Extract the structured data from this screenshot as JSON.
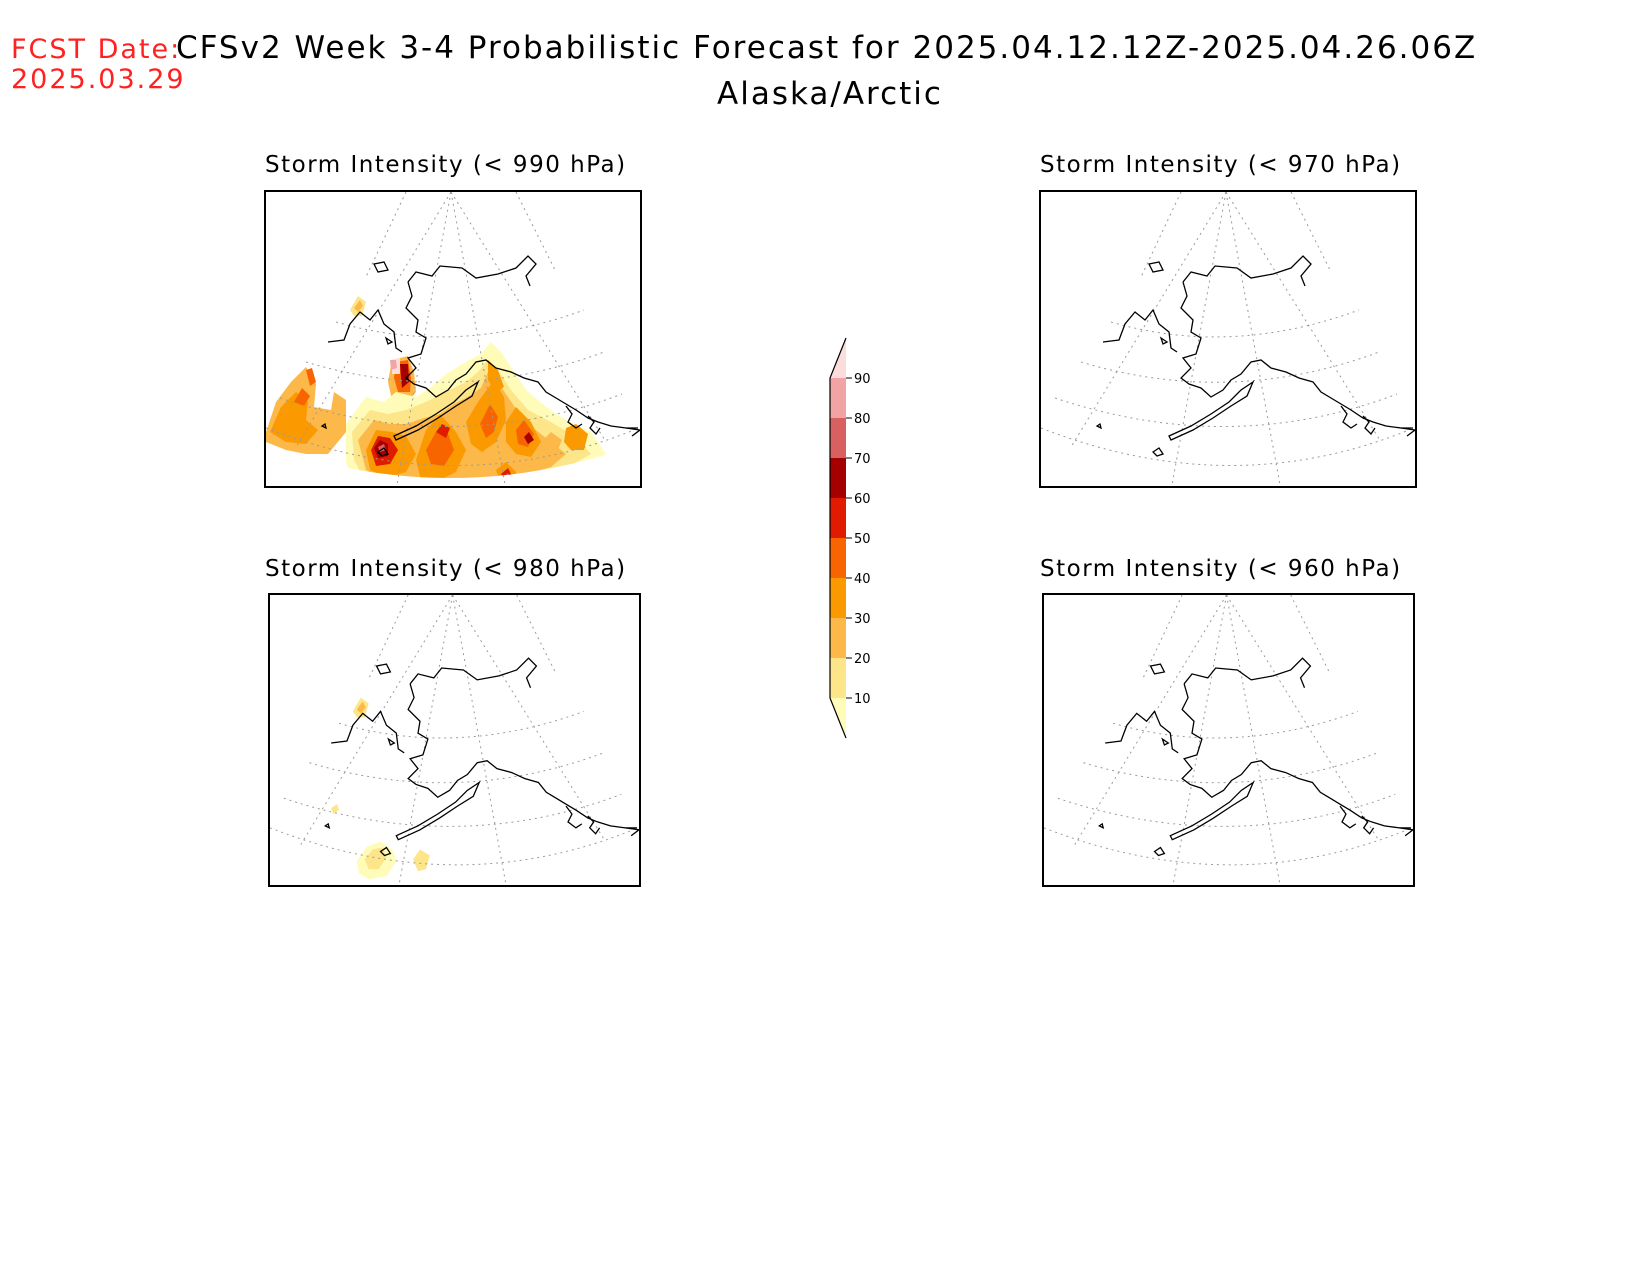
{
  "header": {
    "fcst_label": "FCST Date:",
    "fcst_date": "2025.03.29",
    "title": "CFSv2 Week 3-4 Probabilistic Forecast for 2025.04.12.12Z-2025.04.26.06Z",
    "region": "Alaska/Arctic"
  },
  "panels": [
    {
      "id": "p990",
      "title": "Storm Intensity (< 990 hPa)",
      "threshold_hpa": 990
    },
    {
      "id": "p970",
      "title": "Storm Intensity (< 970 hPa)",
      "threshold_hpa": 970
    },
    {
      "id": "p980",
      "title": "Storm Intensity (< 980 hPa)",
      "threshold_hpa": 980
    },
    {
      "id": "p960",
      "title": "Storm Intensity (< 960 hPa)",
      "threshold_hpa": 960
    }
  ],
  "colorbar": {
    "levels": [
      "10",
      "20",
      "30",
      "40",
      "50",
      "60",
      "70",
      "80",
      "90"
    ],
    "colors": [
      "#fffbb8",
      "#fde58a",
      "#fdb84a",
      "#fb9a00",
      "#f86400",
      "#e01b00",
      "#a50000",
      "#d96060",
      "#f2a3a3",
      "#fddcdc"
    ]
  },
  "colors": {
    "fcst": "#ff2020",
    "text": "#000000"
  }
}
